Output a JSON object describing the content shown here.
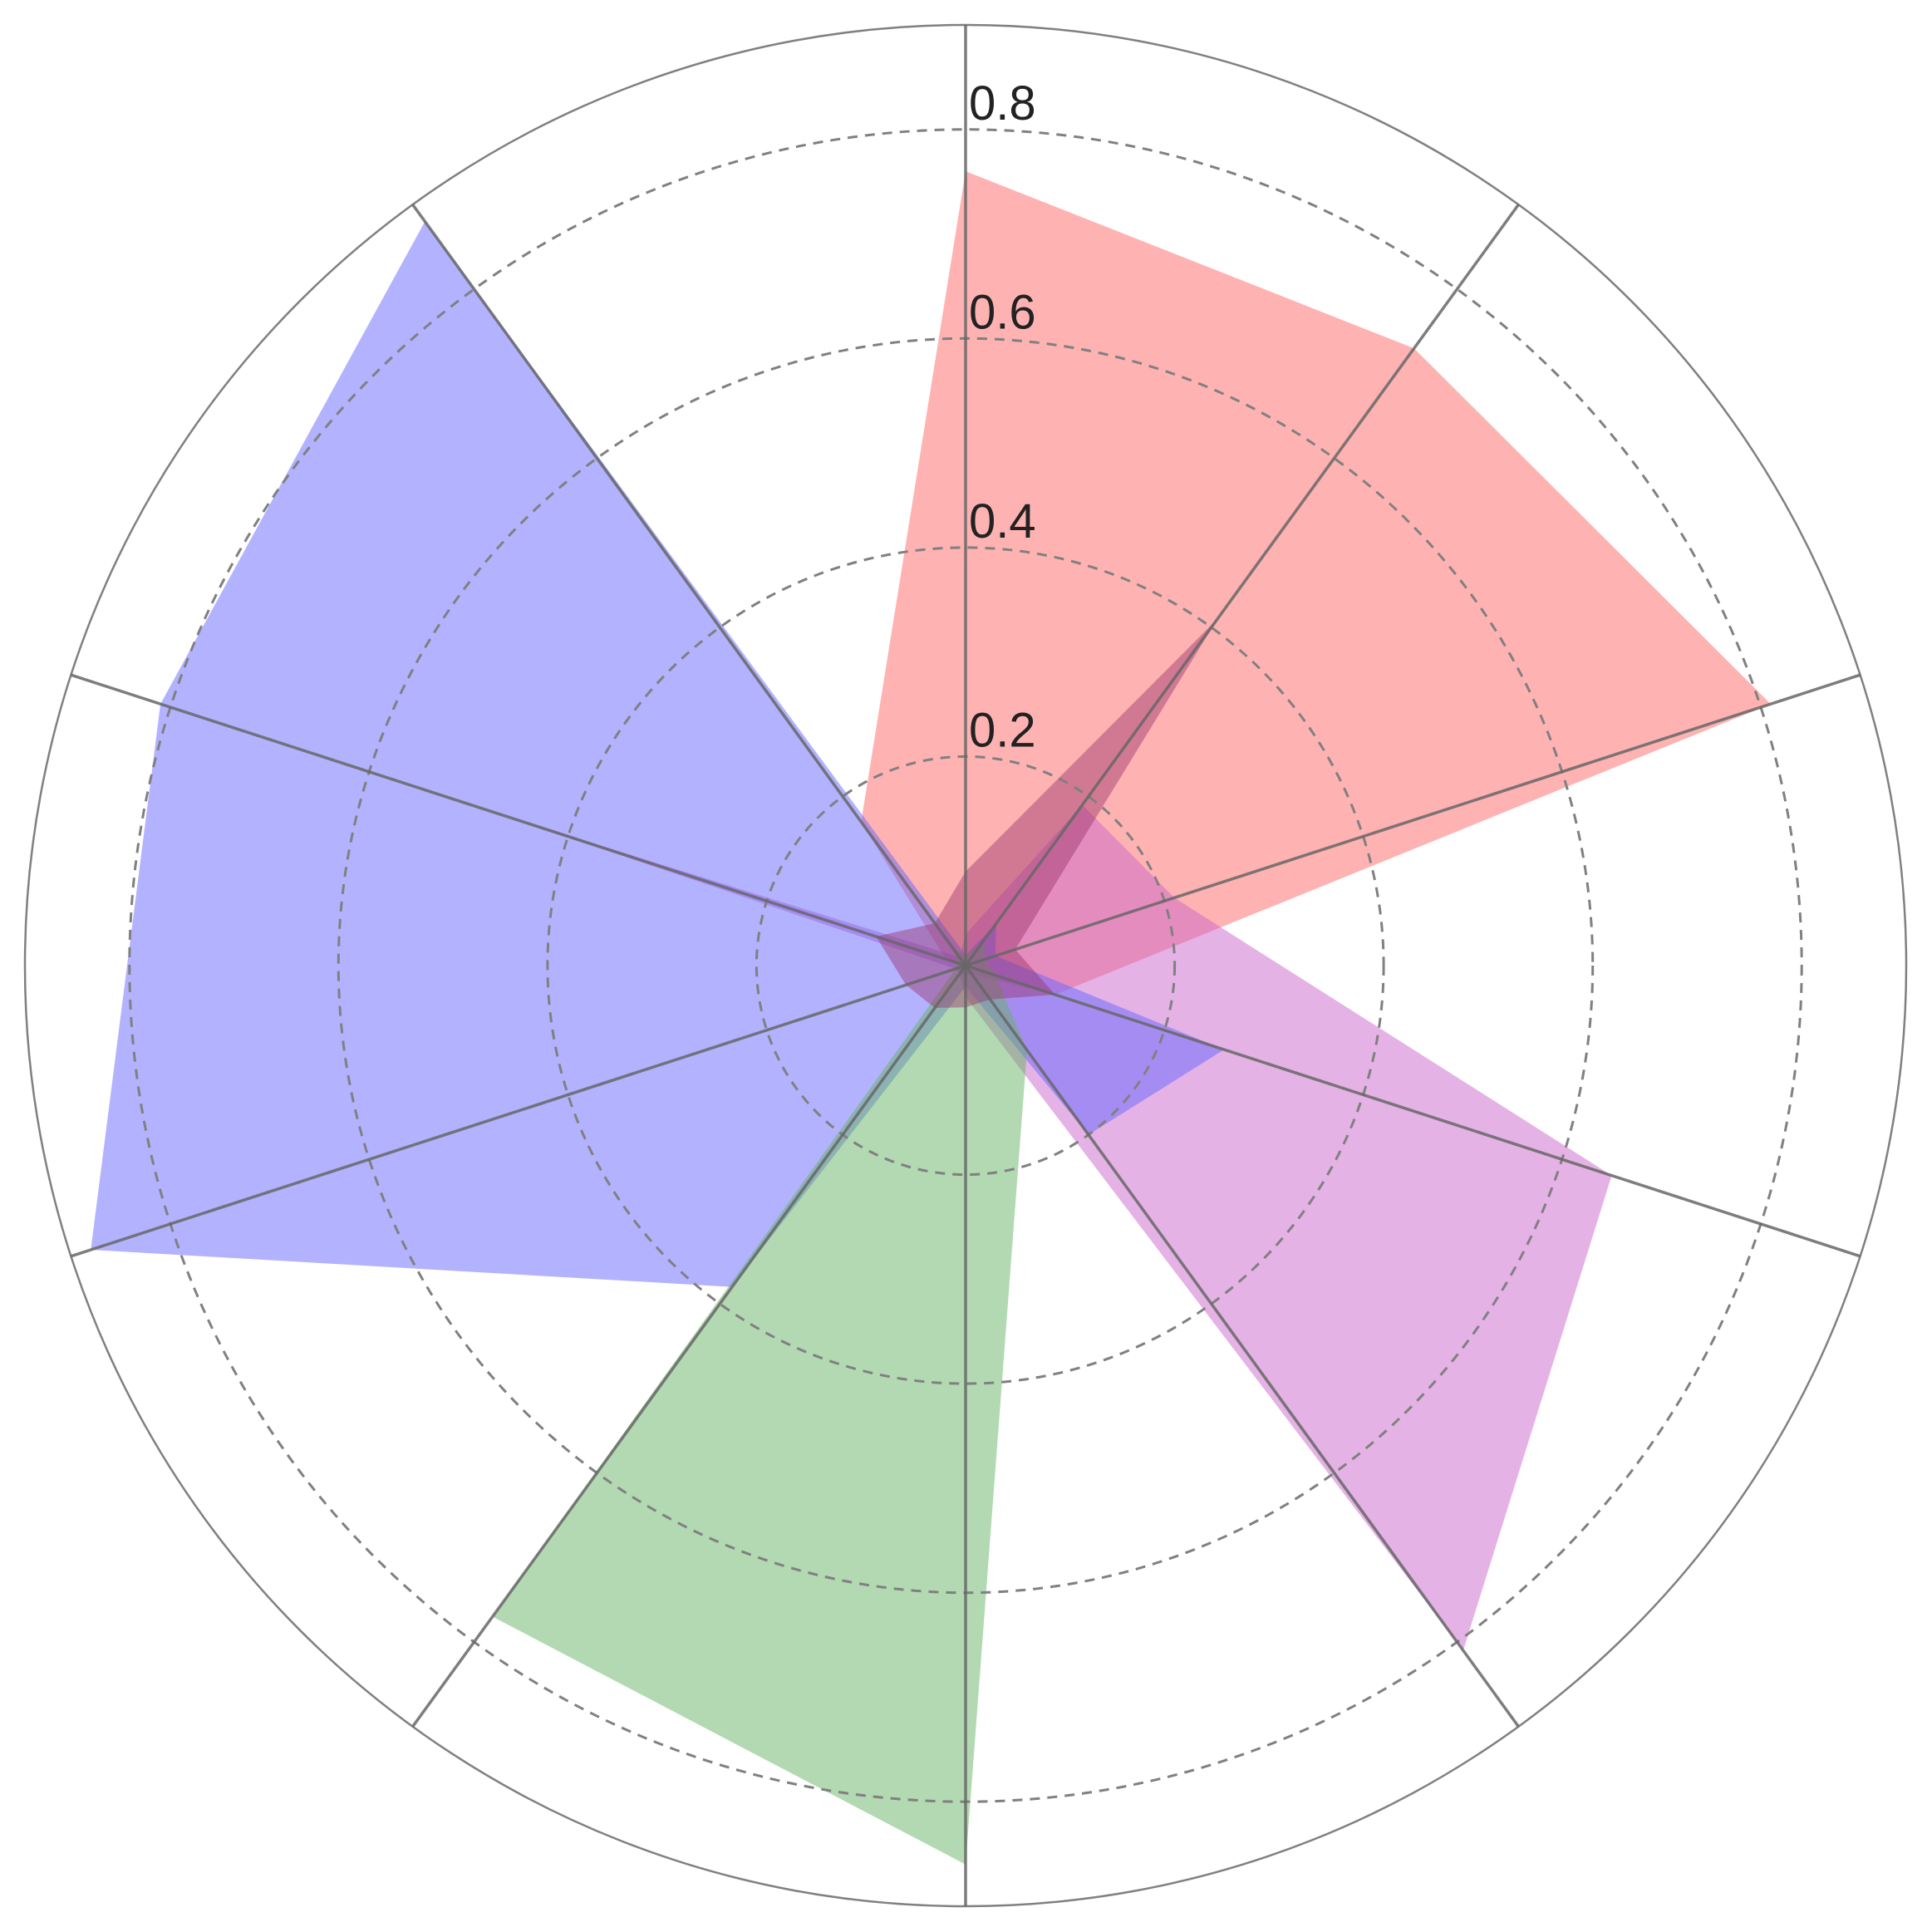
{
  "chart_data": {
    "type": "radar",
    "spokes": 10,
    "rlim": [
      0,
      0.9
    ],
    "radial_ticks": [
      0.2,
      0.4,
      0.6,
      0.8
    ],
    "radial_tick_labels": [
      "0.2",
      "0.4",
      "0.6",
      "0.8"
    ],
    "grid": true,
    "grid_style": "dashed",
    "legend": "none",
    "series": [
      {
        "color": "#ff6666",
        "opacity": 0.5,
        "values": [
          0.76,
          0.73,
          0.81,
          0.09,
          0.01,
          0.01,
          0.01,
          0.0,
          0.02,
          0.17
        ]
      },
      {
        "color": "#cc66cc",
        "opacity": 0.5,
        "values": [
          0.03,
          0.19,
          0.21,
          0.65,
          0.81,
          0.03,
          0.01,
          0.01,
          0.46,
          0.01
        ]
      },
      {
        "color": "#6666ff",
        "opacity": 0.5,
        "values": [
          0.01,
          0.05,
          0.03,
          0.26,
          0.2,
          0.02,
          0.38,
          0.88,
          0.81,
          0.88
        ]
      },
      {
        "color": "#66b366",
        "opacity": 0.5,
        "values": [
          0.01,
          0.03,
          0.02,
          0.03,
          0.1,
          0.86,
          0.77,
          0.01,
          0.01,
          0.02
        ]
      },
      {
        "color": "#99336b",
        "opacity": 0.45,
        "values": [
          0.09,
          0.41,
          0.05,
          0.09,
          0.04,
          0.04,
          0.05,
          0.06,
          0.09,
          0.05
        ]
      }
    ]
  },
  "colors": {
    "grid": "#808080",
    "spoke": "#666666",
    "outer_circle": "#808080",
    "background": "#ffffff"
  }
}
